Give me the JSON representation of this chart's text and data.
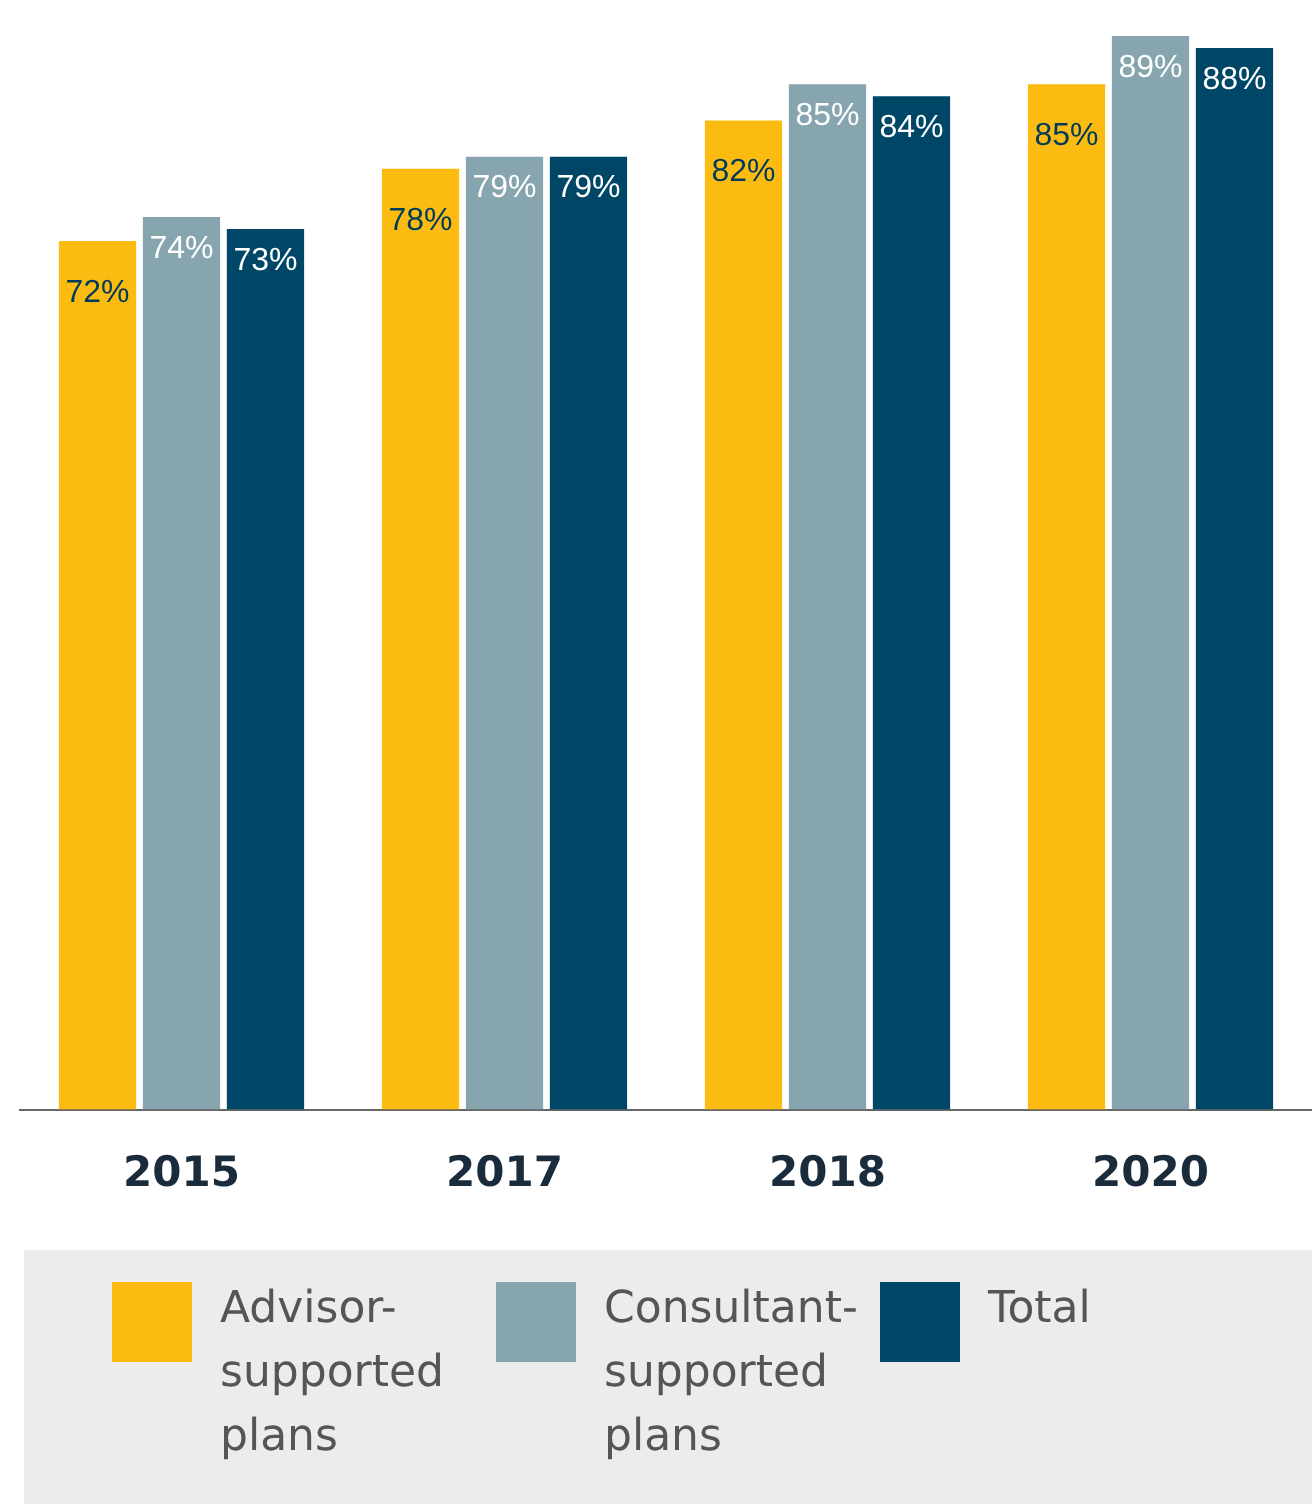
{
  "chart_data": {
    "type": "bar",
    "categories": [
      "2015",
      "2017",
      "2018",
      "2020"
    ],
    "series": [
      {
        "name": "Advisor-supported plans",
        "color": "#fbbb10",
        "values": [
          72,
          78,
          82,
          85
        ],
        "value_labels": [
          "72%",
          "78%",
          "82%",
          "85%"
        ]
      },
      {
        "name": "Consultant-supported plans",
        "color": "#86a5ae",
        "values": [
          74,
          79,
          85,
          89
        ],
        "value_labels": [
          "74%",
          "79%",
          "85%",
          "89%"
        ]
      },
      {
        "name": "Total",
        "color": "#004767",
        "values": [
          73,
          79,
          84,
          88
        ],
        "value_labels": [
          "73%",
          "79%",
          "84%",
          "88%"
        ]
      }
    ],
    "legend": "bottom",
    "grid": false
  }
}
